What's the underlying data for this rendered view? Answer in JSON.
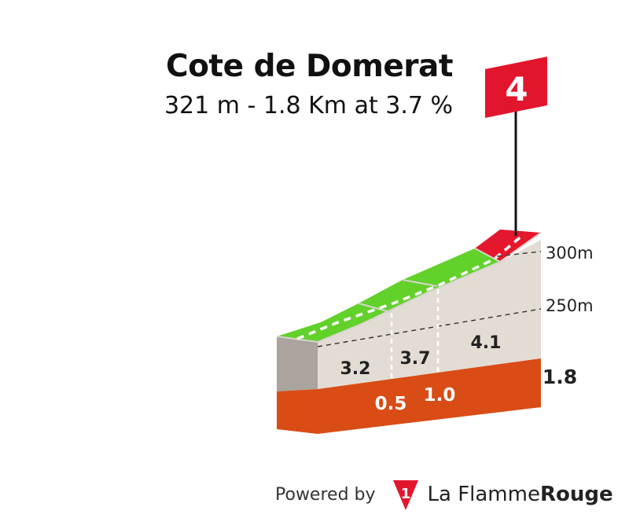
{
  "climb": {
    "name": "Cote de Domerat",
    "summary": "321 m - 1.8 Km at 3.7 %",
    "category": "4"
  },
  "altitude_labels": [
    "300m",
    "250m"
  ],
  "total_distance": "1.8",
  "segments": [
    {
      "gradient": "3.2",
      "km_end": "0.5"
    },
    {
      "gradient": "3.7",
      "km_end": "1.0"
    },
    {
      "gradient": "4.1",
      "km_end": ""
    }
  ],
  "colors": {
    "easy_slope": "#62d12a",
    "steep_slope": "#e4172d",
    "base_band": "#d94c15",
    "wall_side": "#aaa39e",
    "wall_face": "#e3dcd4",
    "flag": "#e3152d"
  },
  "footer": {
    "powered": "Powered by",
    "brand_part1": "La Flamme",
    "brand_part2": "Rouge",
    "logo_char": "1"
  }
}
